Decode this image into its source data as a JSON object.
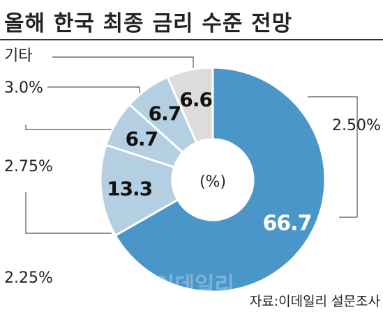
{
  "header": {
    "title": "올해 한국 최종 금리 수준 전망"
  },
  "footer": {
    "source": "자료:이데일리 설문조사",
    "watermark": "이데일리"
  },
  "colors": {
    "main": "#4b96c8",
    "secondary": "#b3cfe1",
    "other": "#dcdcdc",
    "leader": "#555555",
    "text": "#222222"
  },
  "chart_data": {
    "type": "pie",
    "donut": true,
    "center_label": "(%)",
    "slices": [
      {
        "label": "2.50%",
        "value": 66.7,
        "value_label": "66.7"
      },
      {
        "label": "2.25%",
        "value": 13.3,
        "value_label": "13.3"
      },
      {
        "label": "2.75%",
        "value": 6.7,
        "value_label": "6.7"
      },
      {
        "label": "3.0%",
        "value": 6.7,
        "value_label": "6.7"
      },
      {
        "label": "기타",
        "value": 6.6,
        "value_label": "6.6"
      }
    ]
  }
}
